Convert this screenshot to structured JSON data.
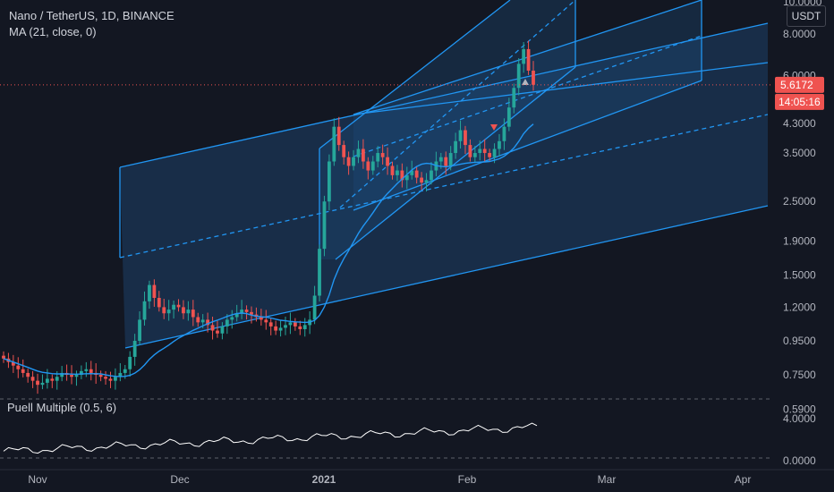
{
  "header": {
    "symbol_line": "Nano / TetherUS, 1D, BINANCE",
    "ma_line": "MA (21, close, 0)"
  },
  "indicator": {
    "label": "Puell Multiple (0.5, 6)"
  },
  "currency_button": "USDT",
  "price_badge": {
    "price": "5.6172",
    "countdown": "14:05:16"
  },
  "colors": {
    "background": "#131722",
    "up": "#26a69a",
    "down": "#ef5350",
    "ma_line": "#2196f3",
    "channel_line": "#2196f3",
    "channel_fill": "#1e4a78",
    "puell_line": "#ffffff",
    "price_badge": "#ef5350"
  },
  "chart_data": {
    "type": "candlestick",
    "title": "Nano / TetherUS, 1D, BINANCE",
    "y_scale": "log",
    "y_ticks": [
      "10.0000",
      "8.0000",
      "6.0000",
      "4.3000",
      "3.5000",
      "2.5000",
      "1.9000",
      "1.5000",
      "1.2000",
      "0.9500",
      "0.7500",
      "0.5900"
    ],
    "x_ticks": [
      "Nov",
      "Dec",
      "2021",
      "Feb",
      "Mar",
      "Apr"
    ],
    "ylim": [
      0.5,
      10.0
    ],
    "last_price": 5.6172,
    "ma": {
      "name": "MA (21, close, 0)",
      "period": 21
    },
    "candles_approx_start": "Oct 25 2020",
    "candles_approx_end": "Feb 17 2021",
    "closes_approx": [
      0.84,
      0.82,
      0.8,
      0.78,
      0.76,
      0.74,
      0.72,
      0.7,
      0.71,
      0.73,
      0.72,
      0.74,
      0.76,
      0.75,
      0.74,
      0.75,
      0.77,
      0.78,
      0.76,
      0.75,
      0.74,
      0.73,
      0.72,
      0.74,
      0.76,
      0.78,
      0.85,
      0.95,
      1.1,
      1.25,
      1.4,
      1.28,
      1.2,
      1.15,
      1.18,
      1.22,
      1.2,
      1.15,
      1.18,
      1.12,
      1.08,
      1.1,
      1.06,
      1.02,
      1.0,
      1.05,
      1.1,
      1.12,
      1.15,
      1.18,
      1.16,
      1.14,
      1.12,
      1.1,
      1.08,
      1.05,
      1.02,
      1.04,
      1.06,
      1.08,
      1.05,
      1.03,
      1.06,
      1.1,
      1.3,
      1.8,
      2.5,
      3.3,
      4.2,
      3.7,
      3.4,
      3.2,
      3.4,
      3.6,
      3.3,
      3.1,
      3.3,
      3.5,
      3.4,
      3.2,
      3.0,
      3.1,
      2.9,
      3.0,
      3.1,
      2.95,
      2.85,
      2.9,
      3.1,
      3.3,
      3.4,
      3.2,
      3.5,
      3.8,
      4.1,
      3.7,
      3.4,
      3.5,
      3.6,
      3.5,
      3.4,
      3.6,
      3.8,
      4.2,
      4.8,
      5.5,
      6.5,
      7.2,
      6.2,
      5.62
    ],
    "puell_multiple": {
      "name": "Puell Multiple (0.5, 6)",
      "ticks": [
        "4.0000",
        "0.0000"
      ]
    }
  }
}
